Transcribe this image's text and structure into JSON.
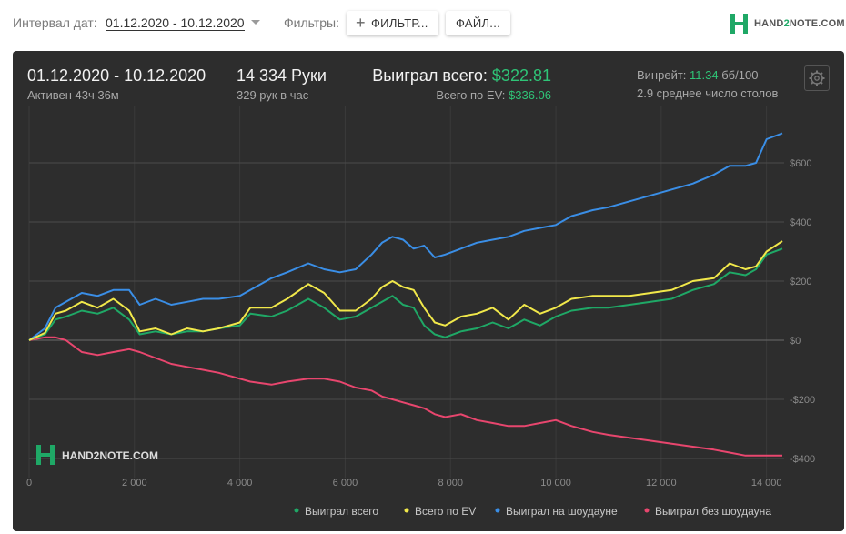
{
  "toolbar": {
    "date_label": "Интервал дат:",
    "date_range": "01.12.2020 - 10.12.2020",
    "filters_label": "Фильтры:",
    "filters_button": "ФИЛЬТР...",
    "files_button": "ФАЙЛ...",
    "logo_prefix": "HAND",
    "logo_two": "2",
    "logo_suffix": "NOTE.COM"
  },
  "summary": {
    "period": "01.12.2020 - 10.12.2020",
    "active": "Активен 43ч 36м",
    "hands": "14 334 Руки",
    "hands_per_hour": "329 рук в час",
    "won_label": "Выиграл всего:",
    "won_value": "$322.81",
    "ev_label": "Всего по EV:",
    "ev_value": "$336.06",
    "winrate_label": "Винрейт:",
    "winrate_value": "11.34",
    "winrate_unit": "бб/100",
    "tables": "2.9 среднее число столов"
  },
  "colors": {
    "won": "#1fa866",
    "ev": "#f1e84a",
    "showdown": "#3a8ee6",
    "non_showdown": "#e8466e",
    "panel": "#2d2d2d",
    "accent_green": "#2fc477"
  },
  "chart_data": {
    "type": "line",
    "xlim": [
      0,
      14334
    ],
    "ylim": [
      -400,
      720
    ],
    "x_ticks": [
      0,
      2000,
      4000,
      6000,
      8000,
      10000,
      12000,
      14000
    ],
    "x_tick_labels": [
      "0",
      "2 000",
      "4 000",
      "6 000",
      "8 000",
      "10 000",
      "12 000",
      "14 000"
    ],
    "y_ticks": [
      600,
      400,
      200,
      0,
      -200,
      -400
    ],
    "y_tick_labels": [
      "$600",
      "$400",
      "$200",
      "$0",
      "-$200",
      "-$400"
    ],
    "grid": true,
    "legend_position": "bottom-right",
    "watermark": "HAND2NOTE.COM",
    "series": [
      {
        "name": "Выиграл всего",
        "color": "#1fa866",
        "x": [
          0,
          300,
          500,
          700,
          1000,
          1300,
          1600,
          1900,
          2100,
          2400,
          2700,
          3000,
          3300,
          3600,
          4000,
          4200,
          4600,
          4900,
          5300,
          5600,
          5900,
          6200,
          6500,
          6700,
          6900,
          7100,
          7300,
          7500,
          7700,
          7900,
          8200,
          8500,
          8800,
          9100,
          9400,
          9700,
          10000,
          10300,
          10700,
          11000,
          11400,
          11800,
          12200,
          12600,
          13000,
          13300,
          13600,
          13800,
          14000,
          14300
        ],
        "y": [
          0,
          20,
          70,
          80,
          100,
          90,
          110,
          70,
          20,
          30,
          20,
          30,
          30,
          40,
          50,
          90,
          80,
          100,
          140,
          110,
          70,
          80,
          110,
          130,
          150,
          120,
          110,
          50,
          20,
          10,
          30,
          40,
          60,
          40,
          70,
          50,
          80,
          100,
          110,
          110,
          120,
          130,
          140,
          170,
          190,
          230,
          220,
          240,
          290,
          310
        ]
      },
      {
        "name": "Всего по EV",
        "color": "#f1e84a",
        "x": [
          0,
          300,
          500,
          700,
          1000,
          1300,
          1600,
          1900,
          2100,
          2400,
          2700,
          3000,
          3300,
          3600,
          4000,
          4200,
          4600,
          4900,
          5300,
          5600,
          5900,
          6200,
          6500,
          6700,
          6900,
          7100,
          7300,
          7500,
          7700,
          7900,
          8200,
          8500,
          8800,
          9100,
          9400,
          9700,
          10000,
          10300,
          10700,
          11000,
          11400,
          11800,
          12200,
          12600,
          13000,
          13300,
          13600,
          13800,
          14000,
          14300
        ],
        "y": [
          0,
          25,
          90,
          100,
          130,
          110,
          140,
          100,
          30,
          40,
          20,
          40,
          30,
          40,
          60,
          110,
          110,
          140,
          190,
          160,
          100,
          100,
          140,
          180,
          200,
          180,
          170,
          110,
          60,
          50,
          80,
          90,
          110,
          70,
          120,
          90,
          110,
          140,
          150,
          150,
          150,
          160,
          170,
          200,
          210,
          260,
          240,
          250,
          300,
          335
        ]
      },
      {
        "name": "Выиграл на шоудауне",
        "color": "#3a8ee6",
        "x": [
          0,
          300,
          500,
          700,
          1000,
          1300,
          1600,
          1900,
          2100,
          2400,
          2700,
          3000,
          3300,
          3600,
          4000,
          4200,
          4600,
          4900,
          5300,
          5600,
          5900,
          6200,
          6500,
          6700,
          6900,
          7100,
          7300,
          7500,
          7700,
          7900,
          8200,
          8500,
          8800,
          9100,
          9400,
          9700,
          10000,
          10300,
          10700,
          11000,
          11400,
          11800,
          12200,
          12600,
          13000,
          13300,
          13600,
          13800,
          14000,
          14300
        ],
        "y": [
          0,
          40,
          110,
          130,
          160,
          150,
          170,
          170,
          120,
          140,
          120,
          130,
          140,
          140,
          150,
          170,
          210,
          230,
          260,
          240,
          230,
          240,
          290,
          330,
          350,
          340,
          310,
          320,
          280,
          290,
          310,
          330,
          340,
          350,
          370,
          380,
          390,
          420,
          440,
          450,
          470,
          490,
          510,
          530,
          560,
          590,
          590,
          600,
          680,
          700
        ]
      },
      {
        "name": "Выиграл без шоудауна",
        "color": "#e8466e",
        "x": [
          0,
          300,
          500,
          700,
          1000,
          1300,
          1600,
          1900,
          2100,
          2400,
          2700,
          3000,
          3300,
          3600,
          4000,
          4200,
          4600,
          4900,
          5300,
          5600,
          5900,
          6200,
          6500,
          6700,
          6900,
          7100,
          7300,
          7500,
          7700,
          7900,
          8200,
          8500,
          8800,
          9100,
          9400,
          9700,
          10000,
          10300,
          10700,
          11000,
          11400,
          11800,
          12200,
          12600,
          13000,
          13300,
          13600,
          13800,
          14000,
          14300
        ],
        "y": [
          0,
          10,
          10,
          0,
          -40,
          -50,
          -40,
          -30,
          -40,
          -60,
          -80,
          -90,
          -100,
          -110,
          -130,
          -140,
          -150,
          -140,
          -130,
          -130,
          -140,
          -160,
          -170,
          -190,
          -200,
          -210,
          -220,
          -230,
          -250,
          -260,
          -250,
          -270,
          -280,
          -290,
          -290,
          -280,
          -270,
          -290,
          -310,
          -320,
          -330,
          -340,
          -350,
          -360,
          -370,
          -380,
          -390,
          -390,
          -390,
          -390
        ]
      }
    ]
  }
}
